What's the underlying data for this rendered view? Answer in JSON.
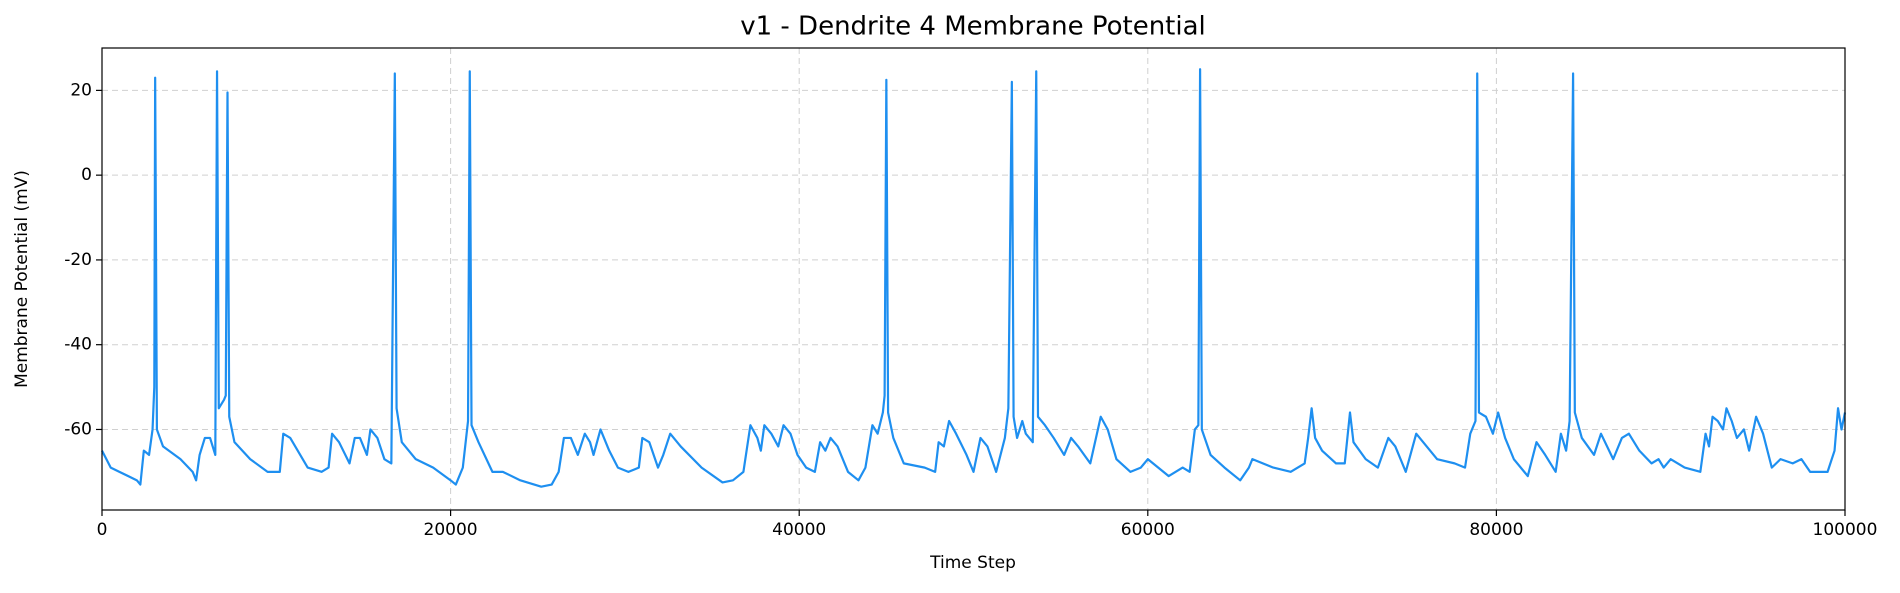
{
  "chart_data": {
    "type": "line",
    "title": "v1 - Dendrite 4 Membrane Potential",
    "x_label": "Time Step",
    "y_label": "Membrane Potential (mV)",
    "xlim": [
      0,
      100000
    ],
    "xticks": [
      0,
      20000,
      40000,
      60000,
      80000,
      100000
    ],
    "ylim": [
      -79,
      30
    ],
    "yticks": [
      -60,
      -40,
      -20,
      0,
      20
    ],
    "grid": true,
    "series": [
      {
        "color": "#1e8ff0",
        "x": [
          0,
          500,
          1000,
          2000,
          2200,
          2400,
          2700,
          2900,
          3000,
          3050,
          3150,
          3500,
          4500,
          5200,
          5400,
          5600,
          5900,
          6200,
          6500,
          6600,
          6700,
          7000,
          7100,
          7200,
          7300,
          7600,
          8500,
          9500,
          10200,
          10400,
          10800,
          11800,
          12600,
          13000,
          13200,
          13600,
          14200,
          14500,
          14800,
          15200,
          15400,
          15800,
          16200,
          16600,
          16800,
          16900,
          17200,
          18000,
          19000,
          20000,
          20300,
          20700,
          21000,
          21100,
          21200,
          21600,
          22400,
          23000,
          24000,
          25200,
          25800,
          26200,
          26500,
          26900,
          27300,
          27700,
          28000,
          28200,
          28600,
          29100,
          29600,
          30200,
          30800,
          31000,
          31400,
          31900,
          32200,
          32600,
          33200,
          34400,
          35600,
          36200,
          36800,
          37200,
          37600,
          37800,
          38000,
          38400,
          38800,
          39100,
          39500,
          39900,
          40400,
          40900,
          41200,
          41500,
          41800,
          42200,
          42800,
          43400,
          43800,
          44200,
          44500,
          44800,
          44900,
          45000,
          45100,
          45400,
          46000,
          47200,
          47800,
          48000,
          48300,
          48600,
          49000,
          49600,
          50000,
          50400,
          50800,
          51300,
          51800,
          52000,
          52200,
          52300,
          52500,
          52800,
          53000,
          53400,
          53600,
          53700,
          54100,
          54600,
          54900,
          55200,
          55600,
          56000,
          56700,
          57300,
          57700,
          58200,
          59000,
          59600,
          60000,
          60600,
          61200,
          62000,
          62400,
          62700,
          62900,
          63000,
          63100,
          63600,
          64400,
          65300,
          65800,
          66000,
          67200,
          68200,
          69000,
          69200,
          69400,
          69600,
          70000,
          70800,
          71300,
          71600,
          71800,
          72500,
          73200,
          73800,
          74200,
          74800,
          75400,
          76000,
          76600,
          77600,
          78200,
          78500,
          78800,
          78900,
          79000,
          79400,
          79800,
          80100,
          80500,
          81000,
          81800,
          82300,
          82800,
          83400,
          83700,
          84000,
          84200,
          84400,
          84500,
          84900,
          85600,
          86000,
          86700,
          87200,
          87600,
          88200,
          88900,
          89300,
          89600,
          90000,
          90800,
          91700,
          92000,
          92200,
          92400,
          92700,
          93000,
          93200,
          93500,
          93800,
          94200,
          94500,
          94900,
          95300,
          95800,
          96300,
          97000,
          97500,
          98000,
          99000,
          99400,
          99600,
          99800,
          100000
        ],
        "values": [
          -65,
          -69,
          -70,
          -72,
          -73,
          -65,
          -66,
          -60,
          -50,
          23,
          -60,
          -64,
          -67,
          -70,
          -72,
          -66,
          -62,
          -62,
          -66,
          24.5,
          -55,
          -53,
          -52,
          19.5,
          -57,
          -63,
          -67,
          -70,
          -70,
          -61,
          -62,
          -69,
          -70,
          -69,
          -61,
          -63,
          -68,
          -62,
          -62,
          -66,
          -60,
          -62,
          -67,
          -68,
          24,
          -55,
          -63,
          -67,
          -69,
          -72,
          -73,
          -69,
          -58,
          24.5,
          -59,
          -63,
          -70,
          -70,
          -72,
          -73.5,
          -73,
          -70,
          -62,
          -62,
          -66,
          -61,
          -63,
          -66,
          -60,
          -65,
          -69,
          -70,
          -69,
          -62,
          -63,
          -69,
          -66,
          -61,
          -64,
          -69,
          -72.5,
          -72,
          -70,
          -59,
          -62,
          -65,
          -59,
          -61,
          -64,
          -59,
          -61,
          -66,
          -69,
          -70,
          -63,
          -65,
          -62,
          -64,
          -70,
          -72,
          -69,
          -59,
          -61,
          -56,
          -52,
          22.5,
          -56,
          -62,
          -68,
          -69,
          -70,
          -63,
          -64,
          -58,
          -61,
          -66,
          -70,
          -62,
          -64,
          -70,
          -62,
          -55,
          22,
          -57,
          -62,
          -58,
          -61,
          -63,
          24.5,
          -57,
          -59,
          -62,
          -64,
          -66,
          -62,
          -64,
          -68,
          -57,
          -60,
          -67,
          -70,
          -69,
          -67,
          -69,
          -71,
          -69,
          -70,
          -60,
          -59,
          25,
          -60,
          -66,
          -69,
          -72,
          -69,
          -67,
          -69,
          -70,
          -68,
          -62,
          -55,
          -62,
          -65,
          -68,
          -68,
          -56,
          -63,
          -67,
          -69,
          -62,
          -64,
          -70,
          -61,
          -64,
          -67,
          -68,
          -69,
          -61,
          -58,
          24,
          -56,
          -57,
          -61,
          -56,
          -62,
          -67,
          -71,
          -63,
          -66,
          -70,
          -61,
          -65,
          -58,
          24,
          -56,
          -62,
          -66,
          -61,
          -67,
          -62,
          -61,
          -65,
          -68,
          -67,
          -69,
          -67,
          -69,
          -70,
          -61,
          -64,
          -57,
          -58,
          -60,
          -55,
          -58,
          -62,
          -60,
          -65,
          -57,
          -61,
          -69,
          -67,
          -68,
          -67,
          -70,
          -70,
          -65,
          -55,
          -60,
          -56
        ]
      }
    ]
  }
}
